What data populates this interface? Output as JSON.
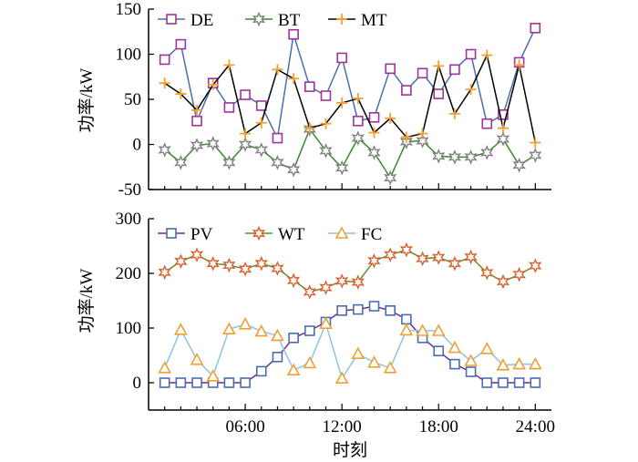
{
  "chart_data": [
    {
      "type": "line",
      "ylabel": "功率/kW",
      "ylim": [
        -50,
        150
      ],
      "yticks": [
        "150",
        "100",
        "50",
        "0",
        "-50"
      ],
      "xlim": [
        0,
        25
      ],
      "legend": "top",
      "series": [
        {
          "name": "DE",
          "color": "#4a6db0",
          "marker_color": "#a0339a",
          "marker": "square",
          "x": [
            1,
            2,
            3,
            4,
            5,
            6,
            7,
            8,
            9,
            10,
            11,
            12,
            13,
            14,
            15,
            16,
            17,
            18,
            19,
            20,
            21,
            22,
            23,
            24
          ],
          "values": [
            94,
            111,
            26,
            68,
            41,
            55,
            43,
            7,
            122,
            64,
            54,
            96,
            26,
            30,
            84,
            60,
            79,
            56,
            83,
            100,
            23,
            33,
            91,
            129
          ]
        },
        {
          "name": "BT",
          "color": "#3a8a2e",
          "marker_color": "#808080",
          "marker": "star",
          "x": [
            1,
            2,
            3,
            4,
            5,
            6,
            7,
            8,
            9,
            10,
            11,
            12,
            13,
            14,
            15,
            16,
            17,
            18,
            19,
            20,
            21,
            22,
            23,
            24
          ],
          "values": [
            -6,
            -20,
            -1,
            1,
            -20,
            0,
            -6,
            -20,
            -28,
            17,
            -7,
            -26,
            7,
            -9,
            -37,
            3,
            4,
            -13,
            -14,
            -14,
            -9,
            6,
            -23,
            -12
          ]
        },
        {
          "name": "MT",
          "color": "#000000",
          "marker_color": "#f0a030",
          "marker": "plus",
          "x": [
            1,
            2,
            3,
            4,
            5,
            6,
            7,
            8,
            9,
            10,
            11,
            12,
            13,
            14,
            15,
            16,
            17,
            18,
            19,
            20,
            21,
            22,
            23,
            24
          ],
          "values": [
            68,
            56,
            38,
            66,
            88,
            12,
            24,
            83,
            73,
            18,
            23,
            46,
            51,
            13,
            29,
            8,
            12,
            87,
            34,
            61,
            99,
            18,
            88,
            2
          ]
        }
      ]
    },
    {
      "type": "line",
      "xlabel": "时刻",
      "ylabel": "功率/kW",
      "ylim": [
        -50,
        300
      ],
      "yticks": [
        "300",
        "200",
        "100",
        "0"
      ],
      "xlim": [
        0,
        25
      ],
      "xticks": [
        {
          "x": 6,
          "label": "06:00"
        },
        {
          "x": 12,
          "label": "12:00"
        },
        {
          "x": 18,
          "label": "18:00"
        },
        {
          "x": 24,
          "label": "24:00"
        }
      ],
      "legend": "top",
      "series": [
        {
          "name": "PV",
          "color": "#7a2a8a",
          "marker_color": "#4a6db0",
          "marker": "square",
          "x": [
            1,
            2,
            3,
            4,
            5,
            6,
            7,
            8,
            9,
            10,
            11,
            12,
            13,
            14,
            15,
            16,
            17,
            18,
            19,
            20,
            21,
            22,
            23,
            24
          ],
          "values": [
            0,
            0,
            0,
            0,
            0,
            0,
            21,
            47,
            82,
            95,
            111,
            132,
            134,
            140,
            132,
            116,
            82,
            58,
            34,
            20,
            0,
            0,
            0,
            0
          ]
        },
        {
          "name": "WT",
          "color": "#6a8a2a",
          "marker_color": "#d9602a",
          "marker": "star",
          "x": [
            1,
            2,
            3,
            4,
            5,
            6,
            7,
            8,
            9,
            10,
            11,
            12,
            13,
            14,
            15,
            16,
            17,
            18,
            19,
            20,
            21,
            22,
            23,
            24
          ],
          "values": [
            202,
            222,
            234,
            218,
            215,
            208,
            218,
            209,
            187,
            166,
            174,
            186,
            184,
            223,
            234,
            243,
            227,
            229,
            218,
            230,
            201,
            185,
            198,
            214
          ]
        },
        {
          "name": "FC",
          "color": "#8cc4e6",
          "marker_color": "#f0a030",
          "marker": "triangle",
          "x": [
            1,
            2,
            3,
            4,
            5,
            6,
            7,
            8,
            9,
            10,
            11,
            12,
            13,
            14,
            15,
            16,
            17,
            18,
            19,
            20,
            21,
            22,
            23,
            24
          ],
          "values": [
            27,
            97,
            42,
            12,
            98,
            107,
            94,
            86,
            23,
            36,
            108,
            8,
            53,
            37,
            27,
            96,
            95,
            95,
            64,
            40,
            62,
            32,
            34,
            34
          ]
        }
      ]
    }
  ]
}
